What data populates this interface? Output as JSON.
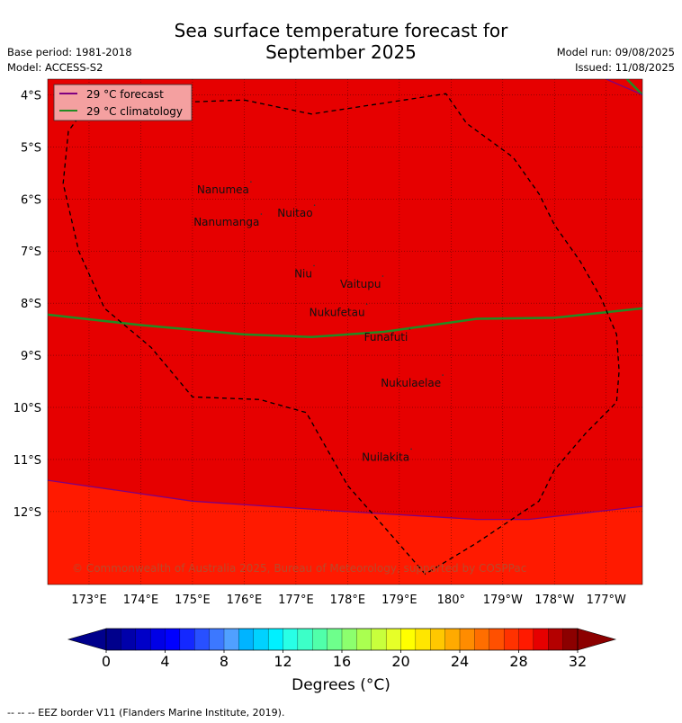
{
  "header": {
    "title_line1": "Sea surface temperature forecast for",
    "title_line2": "September 2025",
    "base_period": "Base period: 1981-2018",
    "model": "Model: ACCESS-S2",
    "model_run": "Model run: 09/08/2025",
    "issued": "Issued: 11/08/2025"
  },
  "map": {
    "lat_range": [
      -13.4,
      -3.7
    ],
    "lon_range": [
      172.2,
      183.7
    ],
    "lat_ticks": [
      {
        "value": -4,
        "label": "4°S"
      },
      {
        "value": -5,
        "label": "5°S"
      },
      {
        "value": -6,
        "label": "6°S"
      },
      {
        "value": -7,
        "label": "7°S"
      },
      {
        "value": -8,
        "label": "8°S"
      },
      {
        "value": -9,
        "label": "9°S"
      },
      {
        "value": -10,
        "label": "10°S"
      },
      {
        "value": -11,
        "label": "11°S"
      },
      {
        "value": -12,
        "label": "12°S"
      }
    ],
    "lon_ticks": [
      {
        "value": 173,
        "label": "173°E"
      },
      {
        "value": 174,
        "label": "174°E"
      },
      {
        "value": 175,
        "label": "175°E"
      },
      {
        "value": 176,
        "label": "176°E"
      },
      {
        "value": 177,
        "label": "177°E"
      },
      {
        "value": 178,
        "label": "178°E"
      },
      {
        "value": 179,
        "label": "179°E"
      },
      {
        "value": 180,
        "label": "180°"
      },
      {
        "value": 181,
        "label": "179°W"
      },
      {
        "value": 182,
        "label": "178°W"
      },
      {
        "value": 183,
        "label": "177°W"
      }
    ],
    "fill_colors": {
      "above_29": "#e60000",
      "between_28_29": "#ff1a00"
    },
    "places": [
      {
        "name": "Nanumea",
        "lon": 176.13,
        "lat": -5.67
      },
      {
        "name": "Nuitao",
        "lon": 177.36,
        "lat": -6.12
      },
      {
        "name": "Nanumanga",
        "lon": 176.33,
        "lat": -6.29
      },
      {
        "name": "Niu",
        "lon": 177.35,
        "lat": -7.28
      },
      {
        "name": "Vaitupu",
        "lon": 178.68,
        "lat": -7.48
      },
      {
        "name": "Nukufetau",
        "lon": 178.37,
        "lat": -8.02
      },
      {
        "name": "Funafuti",
        "lon": 179.2,
        "lat": -8.5
      },
      {
        "name": "Nukulaelae",
        "lon": 179.84,
        "lat": -9.38
      },
      {
        "name": "Nuilakita",
        "lon": 179.23,
        "lat": -10.8
      }
    ],
    "forecast_29_south": [
      {
        "lon": 172.2,
        "lat": -11.4
      },
      {
        "lon": 175,
        "lat": -11.8
      },
      {
        "lon": 178,
        "lat": -12.0
      },
      {
        "lon": 180.5,
        "lat": -12.15
      },
      {
        "lon": 181.5,
        "lat": -12.15
      },
      {
        "lon": 183.7,
        "lat": -11.9
      }
    ],
    "forecast_29_ne": [
      {
        "lon": 183.0,
        "lat": -3.7
      },
      {
        "lon": 183.7,
        "lat": -4.0
      }
    ],
    "climatology_29": [
      {
        "lon": 172.2,
        "lat": -8.22
      },
      {
        "lon": 174,
        "lat": -8.42
      },
      {
        "lon": 176,
        "lat": -8.6
      },
      {
        "lon": 177.3,
        "lat": -8.65
      },
      {
        "lon": 178.7,
        "lat": -8.55
      },
      {
        "lon": 180.5,
        "lat": -8.3
      },
      {
        "lon": 182,
        "lat": -8.28
      },
      {
        "lon": 183.7,
        "lat": -8.1
      }
    ],
    "climatology_29_ne": [
      {
        "lon": 183.4,
        "lat": -3.7
      },
      {
        "lon": 183.7,
        "lat": -4.0
      }
    ],
    "eez": [
      {
        "lon": 176.0,
        "lat": -4.1
      },
      {
        "lon": 177.3,
        "lat": -4.37
      },
      {
        "lon": 179.9,
        "lat": -3.98
      },
      {
        "lon": 180.3,
        "lat": -4.55
      },
      {
        "lon": 181.2,
        "lat": -5.2
      },
      {
        "lon": 181.7,
        "lat": -5.9
      },
      {
        "lon": 182.0,
        "lat": -6.5
      },
      {
        "lon": 182.5,
        "lat": -7.2
      },
      {
        "lon": 182.9,
        "lat": -7.9
      },
      {
        "lon": 183.2,
        "lat": -8.6
      },
      {
        "lon": 183.25,
        "lat": -9.3
      },
      {
        "lon": 183.2,
        "lat": -9.9
      },
      {
        "lon": 182.6,
        "lat": -10.5
      },
      {
        "lon": 182.0,
        "lat": -11.2
      },
      {
        "lon": 181.7,
        "lat": -11.8
      },
      {
        "lon": 180.5,
        "lat": -12.6
      },
      {
        "lon": 179.5,
        "lat": -13.2
      },
      {
        "lon": 178.8,
        "lat": -12.4
      },
      {
        "lon": 178.0,
        "lat": -11.5
      },
      {
        "lon": 177.2,
        "lat": -10.1
      },
      {
        "lon": 176.3,
        "lat": -9.85
      },
      {
        "lon": 175.0,
        "lat": -9.8
      },
      {
        "lon": 174.2,
        "lat": -8.85
      },
      {
        "lon": 173.3,
        "lat": -8.1
      },
      {
        "lon": 172.8,
        "lat": -7.0
      },
      {
        "lon": 172.5,
        "lat": -5.7
      },
      {
        "lon": 172.6,
        "lat": -4.7
      },
      {
        "lon": 173.0,
        "lat": -4.15
      },
      {
        "lon": 174.6,
        "lat": -4.15
      },
      {
        "lon": 176.0,
        "lat": -4.1
      }
    ],
    "legend": {
      "position": "top-left",
      "forecast_label": "29 °C  forecast",
      "forecast_color": "#800080",
      "climatology_label": "29 °C  climatology",
      "climatology_color": "#228b22"
    },
    "copyright": "© Commonwealth of Australia 2025, Bureau of Meteorology, supported by COSPPac"
  },
  "colorbar": {
    "min": 0,
    "max": 32,
    "step": 1,
    "tick_values": [
      0,
      4,
      8,
      12,
      16,
      20,
      24,
      28,
      32
    ],
    "tick_labels": [
      "0",
      "4",
      "8",
      "12",
      "16",
      "20",
      "24",
      "28",
      "32"
    ],
    "colors": [
      "#00008c",
      "#0000aa",
      "#0000c8",
      "#0000e6",
      "#0000ff",
      "#1428ff",
      "#2850ff",
      "#3c78ff",
      "#50a0ff",
      "#00b4ff",
      "#00d2ff",
      "#00f0ff",
      "#28ffe6",
      "#3cffc8",
      "#50ffaa",
      "#6eff8c",
      "#8cff6e",
      "#aaff50",
      "#c8ff3c",
      "#e6ff28",
      "#ffff00",
      "#ffe600",
      "#ffc800",
      "#ffaa00",
      "#ff8c00",
      "#ff6e00",
      "#ff5000",
      "#ff3200",
      "#ff1a00",
      "#e60000",
      "#b40000",
      "#8c0000"
    ],
    "under_color": "#00008c",
    "over_color": "#8c0000",
    "label": "Degrees (°C)"
  },
  "footnote": "--  --  -- EEZ border V11 (Flanders Marine Institute, 2019)."
}
